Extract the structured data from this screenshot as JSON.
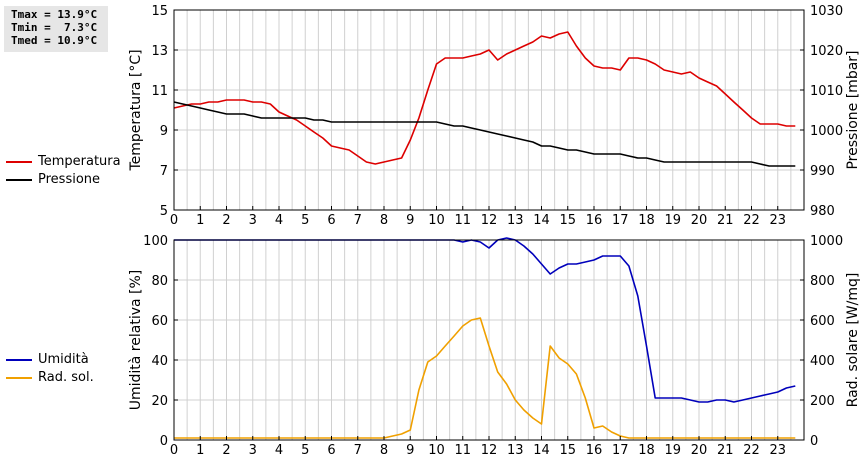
{
  "stats": {
    "tmax": "Tmax = 13.9°C",
    "tmin": "Tmin =  7.3°C",
    "tmed": "Tmed = 10.9°C"
  },
  "colors": {
    "temperature": "#dd0000",
    "pressure": "#000000",
    "humidity": "#0000bb",
    "solar": "#f0a000",
    "grid": "#d0d0d0"
  },
  "chart_data": [
    {
      "type": "line",
      "grid": true,
      "x_ticks": [
        "0",
        "1",
        "2",
        "3",
        "4",
        "5",
        "6",
        "7",
        "8",
        "9",
        "10",
        "11",
        "12",
        "13",
        "14",
        "15",
        "16",
        "17",
        "18",
        "19",
        "20",
        "21",
        "22",
        "23"
      ],
      "xlim": [
        0,
        24
      ],
      "ylabel": "Temperatura [°C]",
      "ylim": [
        5,
        15
      ],
      "y_ticks": [
        5,
        7,
        9,
        11,
        13,
        15
      ],
      "y2label": "Pressione [mbar]",
      "y2lim": [
        980,
        1030
      ],
      "y2_ticks": [
        980,
        990,
        1000,
        1010,
        1020,
        1030
      ],
      "series": [
        {
          "name": "Temperatura",
          "axis": "left",
          "color": "#dd0000",
          "x": [
            0,
            0.33,
            0.67,
            1,
            1.33,
            1.67,
            2,
            2.33,
            2.67,
            3,
            3.33,
            3.67,
            4,
            4.33,
            4.67,
            5,
            5.33,
            5.67,
            6,
            6.33,
            6.67,
            7,
            7.33,
            7.67,
            8,
            8.33,
            8.67,
            9,
            9.33,
            9.67,
            10,
            10.33,
            10.67,
            11,
            11.33,
            11.67,
            12,
            12.33,
            12.67,
            13,
            13.33,
            13.67,
            14,
            14.33,
            14.67,
            15,
            15.33,
            15.67,
            16,
            16.33,
            16.67,
            17,
            17.33,
            17.67,
            18,
            18.33,
            18.67,
            19,
            19.33,
            19.67,
            20,
            20.33,
            20.67,
            21,
            21.33,
            21.67,
            22,
            22.33,
            22.67,
            23,
            23.33,
            23.67
          ],
          "values": [
            10.1,
            10.2,
            10.3,
            10.3,
            10.4,
            10.4,
            10.5,
            10.5,
            10.5,
            10.4,
            10.4,
            10.3,
            9.9,
            9.7,
            9.5,
            9.2,
            8.9,
            8.6,
            8.2,
            8.1,
            8.0,
            7.7,
            7.4,
            7.3,
            7.4,
            7.5,
            7.6,
            8.5,
            9.6,
            11.0,
            12.3,
            12.6,
            12.6,
            12.6,
            12.7,
            12.8,
            13.0,
            12.5,
            12.8,
            13.0,
            13.2,
            13.4,
            13.7,
            13.6,
            13.8,
            13.9,
            13.2,
            12.6,
            12.2,
            12.1,
            12.1,
            12.0,
            12.6,
            12.6,
            12.5,
            12.3,
            12.0,
            11.9,
            11.8,
            11.9,
            11.6,
            11.4,
            11.2,
            10.8,
            10.4,
            10.0,
            9.6,
            9.3,
            9.3,
            9.3,
            9.2,
            9.2
          ]
        },
        {
          "name": "Pressione",
          "axis": "right",
          "color": "#000000",
          "x": [
            0,
            0.33,
            0.67,
            1,
            1.33,
            1.67,
            2,
            2.33,
            2.67,
            3,
            3.33,
            3.67,
            4,
            4.33,
            4.67,
            5,
            5.33,
            5.67,
            6,
            6.33,
            6.67,
            7,
            7.33,
            7.67,
            8,
            8.33,
            8.67,
            9,
            9.33,
            9.67,
            10,
            10.33,
            10.67,
            11,
            11.33,
            11.67,
            12,
            12.33,
            12.67,
            13,
            13.33,
            13.67,
            14,
            14.33,
            14.67,
            15,
            15.33,
            15.67,
            16,
            16.33,
            16.67,
            17,
            17.33,
            17.67,
            18,
            18.33,
            18.67,
            19,
            19.33,
            19.67,
            20,
            20.33,
            20.67,
            21,
            21.33,
            21.67,
            22,
            22.33,
            22.67,
            23,
            23.33,
            23.67
          ],
          "values": [
            1007,
            1006.5,
            1006,
            1005.5,
            1005,
            1004.5,
            1004,
            1004,
            1004,
            1003.5,
            1003,
            1003,
            1003,
            1003,
            1003,
            1003,
            1002.5,
            1002.5,
            1002,
            1002,
            1002,
            1002,
            1002,
            1002,
            1002,
            1002,
            1002,
            1002,
            1002,
            1002,
            1002,
            1001.5,
            1001,
            1001,
            1000.5,
            1000,
            999.5,
            999,
            998.5,
            998,
            997.5,
            997,
            996,
            996,
            995.5,
            995,
            995,
            994.5,
            994,
            994,
            994,
            994,
            993.5,
            993,
            993,
            992.5,
            992,
            992,
            992,
            992,
            992,
            992,
            992,
            992,
            992,
            992,
            992,
            991.5,
            991,
            991,
            991,
            991
          ]
        }
      ]
    },
    {
      "type": "line",
      "grid": true,
      "x_ticks": [
        "0",
        "1",
        "2",
        "3",
        "4",
        "5",
        "6",
        "7",
        "8",
        "9",
        "10",
        "11",
        "12",
        "13",
        "14",
        "15",
        "16",
        "17",
        "18",
        "19",
        "20",
        "21",
        "22",
        "23"
      ],
      "xlim": [
        0,
        24
      ],
      "ylabel": "Umidità relativa [%]",
      "ylim": [
        0,
        100
      ],
      "y_ticks": [
        0,
        20,
        40,
        60,
        80,
        100
      ],
      "y2label": "Rad. solare [W/mq]",
      "y2lim": [
        0,
        1000
      ],
      "y2_ticks": [
        0,
        200,
        400,
        600,
        800,
        1000
      ],
      "series": [
        {
          "name": "Umidità",
          "axis": "left",
          "color": "#0000bb",
          "x": [
            0,
            10.67,
            11,
            11.33,
            11.67,
            12,
            12.33,
            12.67,
            13,
            13.33,
            13.67,
            14,
            14.33,
            14.67,
            15,
            15.33,
            15.67,
            16,
            16.33,
            16.67,
            17,
            17.33,
            17.67,
            18,
            18.33,
            18.67,
            19,
            19.33,
            19.67,
            20,
            20.33,
            20.67,
            21,
            21.33,
            21.67,
            22,
            22.33,
            22.67,
            23,
            23.33,
            23.67
          ],
          "values": [
            100,
            100,
            99,
            100,
            99,
            96,
            100,
            101,
            100,
            97,
            93,
            88,
            83,
            86,
            88,
            88,
            89,
            90,
            92,
            92,
            92,
            87,
            72,
            47,
            21,
            21,
            21,
            21,
            20,
            19,
            19,
            20,
            20,
            19,
            20,
            21,
            22,
            23,
            24,
            26,
            27
          ]
        },
        {
          "name": "Rad. sol.",
          "axis": "right",
          "color": "#f0a000",
          "x": [
            0,
            7.33,
            7.67,
            8,
            8.33,
            8.67,
            9,
            9.33,
            9.67,
            10,
            10.33,
            10.67,
            11,
            11.33,
            11.67,
            12,
            12.33,
            12.67,
            13,
            13.33,
            13.67,
            14,
            14.33,
            14.67,
            15,
            15.33,
            15.67,
            16,
            16.33,
            16.67,
            17,
            17.33,
            17.67,
            18,
            18.33,
            23.67
          ],
          "values": [
            10,
            10,
            10,
            10,
            20,
            30,
            50,
            250,
            390,
            420,
            470,
            520,
            570,
            600,
            610,
            470,
            340,
            280,
            200,
            150,
            110,
            80,
            470,
            410,
            380,
            330,
            210,
            60,
            70,
            40,
            20,
            10,
            10,
            10,
            10,
            10
          ]
        }
      ]
    }
  ]
}
